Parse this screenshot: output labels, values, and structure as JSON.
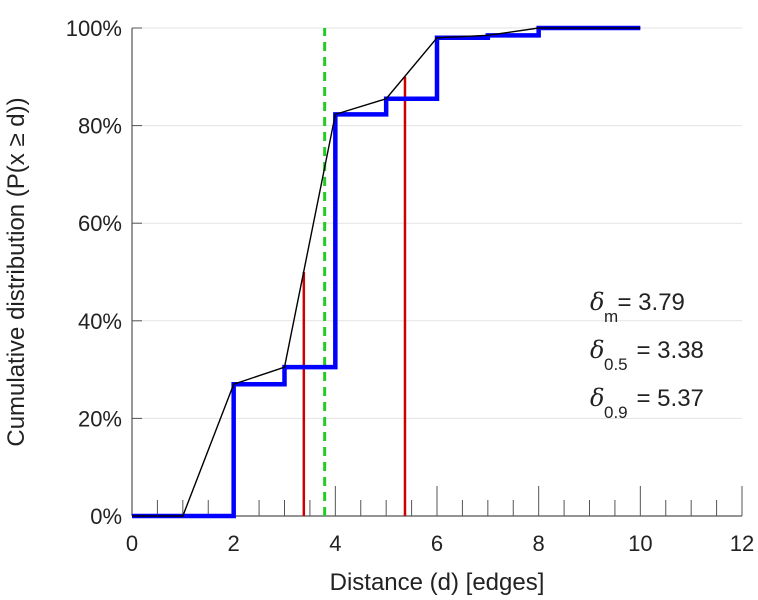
{
  "chart_data": {
    "type": "line",
    "xlabel": "Distance (d) [edges]",
    "ylabel": "Cumulative distribution (P(x ≥ d))",
    "xlim": [
      0,
      12
    ],
    "ylim": [
      0,
      1
    ],
    "x_ticks": [
      0,
      2,
      4,
      6,
      8,
      10,
      12
    ],
    "y_ticks": [
      0,
      0.2,
      0.4,
      0.6,
      0.8,
      1.0
    ],
    "y_tick_labels": [
      "0%",
      "20%",
      "40%",
      "60%",
      "80%",
      "100%"
    ],
    "x_minor_step": 0.5,
    "grid": "horizontal",
    "series": [
      {
        "style": "step",
        "color": "#0000ff",
        "points": [
          [
            0,
            0.0
          ],
          [
            2,
            0.27
          ],
          [
            3,
            0.305
          ],
          [
            4,
            0.823
          ],
          [
            5,
            0.855
          ],
          [
            6,
            0.98
          ],
          [
            7,
            0.985
          ],
          [
            8,
            1.0
          ],
          [
            10,
            1.0
          ]
        ]
      },
      {
        "style": "polyline",
        "color": "#000000",
        "points": [
          [
            0,
            0.0
          ],
          [
            1,
            0.0
          ],
          [
            2,
            0.27
          ],
          [
            3,
            0.305
          ],
          [
            4,
            0.823
          ],
          [
            5,
            0.855
          ],
          [
            6,
            0.98
          ],
          [
            7,
            0.985
          ],
          [
            8,
            1.0
          ],
          [
            9,
            1.0
          ],
          [
            10,
            1.0
          ]
        ]
      }
    ],
    "vertical_markers": [
      {
        "x": 3.38,
        "y_top": 0.5,
        "color": "#cc0000",
        "style": "solid"
      },
      {
        "x": 5.37,
        "y_top": 0.9,
        "color": "#cc0000",
        "style": "solid"
      },
      {
        "x": 3.79,
        "y_top": 1.0,
        "color": "#22cc22",
        "style": "dashed"
      }
    ],
    "annotations": [
      {
        "symbol": "δ",
        "sub": "m",
        "text": " = 3.79"
      },
      {
        "symbol": "δ",
        "sub": "0.5",
        "text": " = 3.38"
      },
      {
        "symbol": "δ",
        "sub": "0.9",
        "text": " = 5.37"
      }
    ]
  }
}
